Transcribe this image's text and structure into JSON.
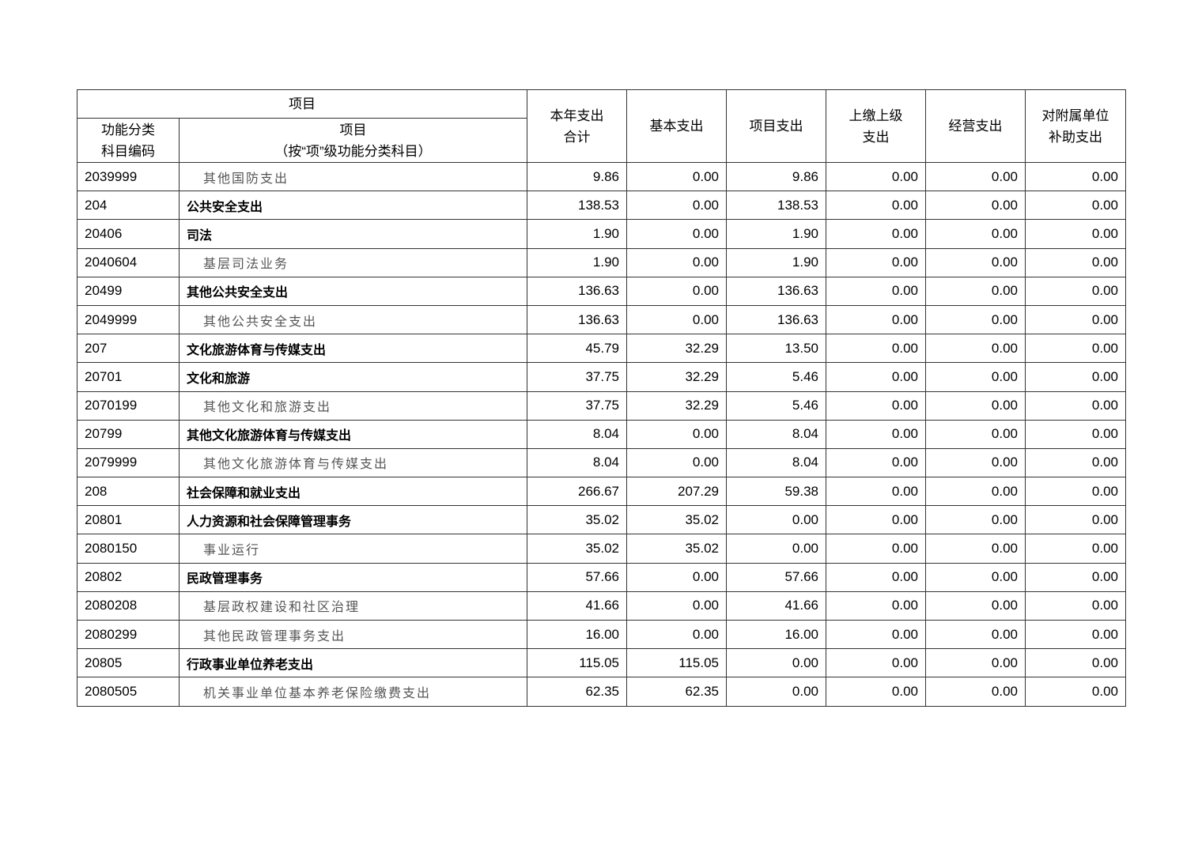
{
  "header": {
    "item_group": "项目",
    "code": [
      "功能分类",
      "科目编码"
    ],
    "item": [
      "项目",
      "（按“项”级功能分类科目）"
    ],
    "total": [
      "本年支出",
      "合计"
    ],
    "basic": "基本支出",
    "project": "项目支出",
    "upper": [
      "上缴上级",
      "支出"
    ],
    "operating": "经营支出",
    "subsidiary": [
      "对附属单位",
      "补助支出"
    ]
  },
  "rows": [
    {
      "code": "2039999",
      "name": "其他国防支出",
      "level": "sub",
      "v": [
        "9.86",
        "0.00",
        "9.86",
        "0.00",
        "0.00",
        "0.00"
      ]
    },
    {
      "code": "204",
      "name": "公共安全支出",
      "level": "bold",
      "v": [
        "138.53",
        "0.00",
        "138.53",
        "0.00",
        "0.00",
        "0.00"
      ]
    },
    {
      "code": "20406",
      "name": "司法",
      "level": "bold",
      "v": [
        "1.90",
        "0.00",
        "1.90",
        "0.00",
        "0.00",
        "0.00"
      ]
    },
    {
      "code": "2040604",
      "name": "基层司法业务",
      "level": "sub",
      "v": [
        "1.90",
        "0.00",
        "1.90",
        "0.00",
        "0.00",
        "0.00"
      ]
    },
    {
      "code": "20499",
      "name": "其他公共安全支出",
      "level": "bold",
      "v": [
        "136.63",
        "0.00",
        "136.63",
        "0.00",
        "0.00",
        "0.00"
      ]
    },
    {
      "code": "2049999",
      "name": "其他公共安全支出",
      "level": "sub",
      "v": [
        "136.63",
        "0.00",
        "136.63",
        "0.00",
        "0.00",
        "0.00"
      ]
    },
    {
      "code": "207",
      "name": "文化旅游体育与传媒支出",
      "level": "bold",
      "v": [
        "45.79",
        "32.29",
        "13.50",
        "0.00",
        "0.00",
        "0.00"
      ]
    },
    {
      "code": "20701",
      "name": "文化和旅游",
      "level": "bold",
      "v": [
        "37.75",
        "32.29",
        "5.46",
        "0.00",
        "0.00",
        "0.00"
      ]
    },
    {
      "code": "2070199",
      "name": "其他文化和旅游支出",
      "level": "sub",
      "v": [
        "37.75",
        "32.29",
        "5.46",
        "0.00",
        "0.00",
        "0.00"
      ]
    },
    {
      "code": "20799",
      "name": "其他文化旅游体育与传媒支出",
      "level": "bold",
      "v": [
        "8.04",
        "0.00",
        "8.04",
        "0.00",
        "0.00",
        "0.00"
      ]
    },
    {
      "code": "2079999",
      "name": "其他文化旅游体育与传媒支出",
      "level": "sub",
      "v": [
        "8.04",
        "0.00",
        "8.04",
        "0.00",
        "0.00",
        "0.00"
      ]
    },
    {
      "code": "208",
      "name": "社会保障和就业支出",
      "level": "bold",
      "v": [
        "266.67",
        "207.29",
        "59.38",
        "0.00",
        "0.00",
        "0.00"
      ]
    },
    {
      "code": "20801",
      "name": "人力资源和社会保障管理事务",
      "level": "bold",
      "v": [
        "35.02",
        "35.02",
        "0.00",
        "0.00",
        "0.00",
        "0.00"
      ]
    },
    {
      "code": "2080150",
      "name": "事业运行",
      "level": "sub",
      "v": [
        "35.02",
        "35.02",
        "0.00",
        "0.00",
        "0.00",
        "0.00"
      ]
    },
    {
      "code": "20802",
      "name": "民政管理事务",
      "level": "bold",
      "v": [
        "57.66",
        "0.00",
        "57.66",
        "0.00",
        "0.00",
        "0.00"
      ]
    },
    {
      "code": "2080208",
      "name": "基层政权建设和社区治理",
      "level": "sub",
      "v": [
        "41.66",
        "0.00",
        "41.66",
        "0.00",
        "0.00",
        "0.00"
      ]
    },
    {
      "code": "2080299",
      "name": "其他民政管理事务支出",
      "level": "sub",
      "v": [
        "16.00",
        "0.00",
        "16.00",
        "0.00",
        "0.00",
        "0.00"
      ]
    },
    {
      "code": "20805",
      "name": "行政事业单位养老支出",
      "level": "bold",
      "v": [
        "115.05",
        "115.05",
        "0.00",
        "0.00",
        "0.00",
        "0.00"
      ]
    },
    {
      "code": "2080505",
      "name": "机关事业单位基本养老保险缴费支出",
      "level": "sub",
      "v": [
        "62.35",
        "62.35",
        "0.00",
        "0.00",
        "0.00",
        "0.00"
      ]
    }
  ]
}
